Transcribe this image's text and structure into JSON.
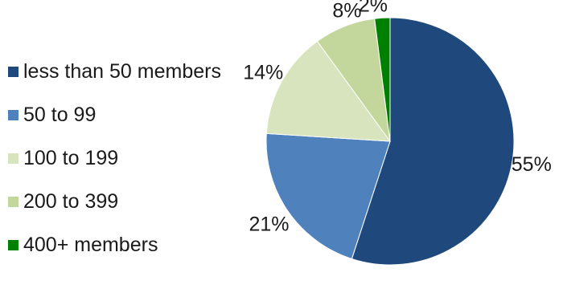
{
  "chart_data": {
    "type": "pie",
    "title": "",
    "legend_position": "left",
    "slices": [
      {
        "label": "less than 50 members",
        "value": 55,
        "value_label": "55%",
        "color": "#1f497d"
      },
      {
        "label": "50 to 99",
        "value": 21,
        "value_label": "21%",
        "color": "#4f81bd"
      },
      {
        "label": "100 to 199",
        "value": 14,
        "value_label": "14%",
        "color": "#d7e4bd"
      },
      {
        "label": "200 to 399",
        "value": 8,
        "value_label": "8%",
        "color": "#c3d69b"
      },
      {
        "label": "400+ members",
        "value": 2,
        "value_label": "2%",
        "color": "#008000"
      }
    ]
  }
}
